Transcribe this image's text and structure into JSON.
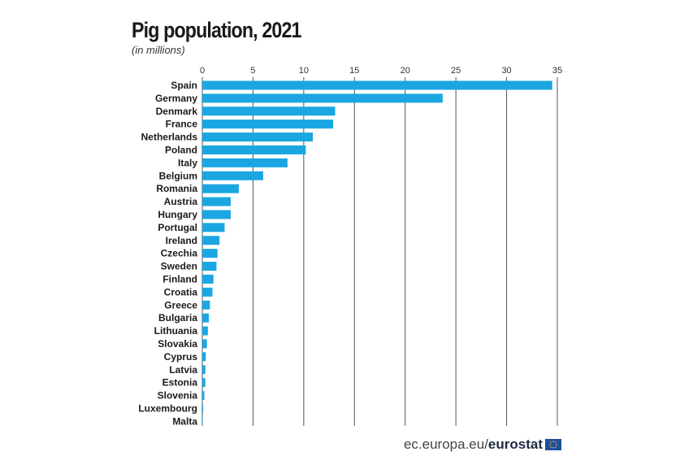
{
  "title": "Pig population, 2021",
  "subtitle": "(in millions)",
  "footer": {
    "site": "ec.europa.eu/",
    "brand": "eurostat",
    "flag_icon": "eu-flag-icon"
  },
  "colors": {
    "bar": "#1ba6e1",
    "grid": "#555555",
    "text": "#1a1a1a"
  },
  "chart_data": {
    "type": "bar",
    "orientation": "horizontal",
    "title": "Pig population, 2021",
    "subtitle": "(in millions)",
    "categories": [
      "Spain",
      "Germany",
      "Denmark",
      "France",
      "Netherlands",
      "Poland",
      "Italy",
      "Belgium",
      "Romania",
      "Austria",
      "Hungary",
      "Portugal",
      "Ireland",
      "Czechia",
      "Sweden",
      "Finland",
      "Croatia",
      "Greece",
      "Bulgaria",
      "Lithuania",
      "Slovakia",
      "Cyprus",
      "Latvia",
      "Estonia",
      "Slovenia",
      "Luxembourg",
      "Malta"
    ],
    "values": [
      34.5,
      23.7,
      13.1,
      12.9,
      10.9,
      10.2,
      8.4,
      6.0,
      3.6,
      2.8,
      2.8,
      2.2,
      1.7,
      1.5,
      1.4,
      1.1,
      1.0,
      0.75,
      0.65,
      0.55,
      0.45,
      0.35,
      0.3,
      0.3,
      0.2,
      0.08,
      0.04
    ],
    "xticks": [
      0,
      5,
      10,
      15,
      20,
      25,
      30,
      35
    ],
    "xlim": [
      0,
      35
    ],
    "xlabel": "",
    "ylabel": "",
    "grid": true,
    "legend": "none"
  }
}
